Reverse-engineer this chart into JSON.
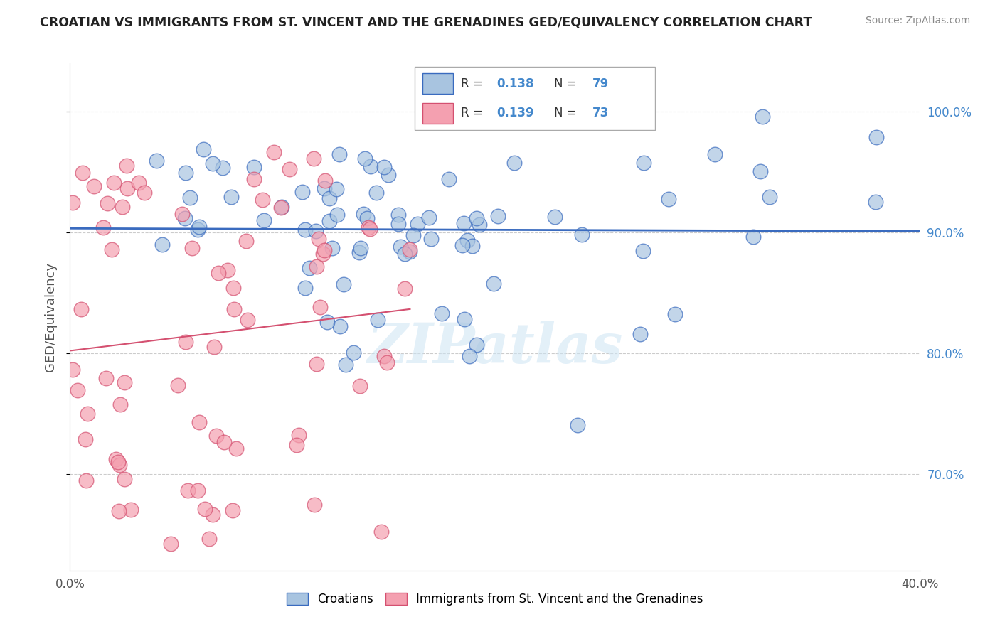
{
  "title": "CROATIAN VS IMMIGRANTS FROM ST. VINCENT AND THE GRENADINES GED/EQUIVALENCY CORRELATION CHART",
  "source": "Source: ZipAtlas.com",
  "ylabel": "GED/Equivalency",
  "ytick_labels": [
    "70.0%",
    "80.0%",
    "90.0%",
    "100.0%"
  ],
  "ytick_values": [
    0.7,
    0.8,
    0.9,
    1.0
  ],
  "xtick_labels": [
    "0.0%",
    "40.0%"
  ],
  "xtick_values": [
    0.0,
    0.4
  ],
  "xlim": [
    0.0,
    0.4
  ],
  "ylim": [
    0.62,
    1.04
  ],
  "legend_r1": "0.138",
  "legend_n1": "79",
  "legend_r2": "0.139",
  "legend_n2": "73",
  "color_blue": "#a8c4e0",
  "color_pink": "#f4a0b0",
  "line_blue": "#3a6bbf",
  "line_pink": "#d45070",
  "accent_blue": "#4488cc",
  "watermark": "ZIPatlas",
  "label_croatians": "Croatians",
  "label_svg": "Immigrants from St. Vincent and the Grenadines"
}
